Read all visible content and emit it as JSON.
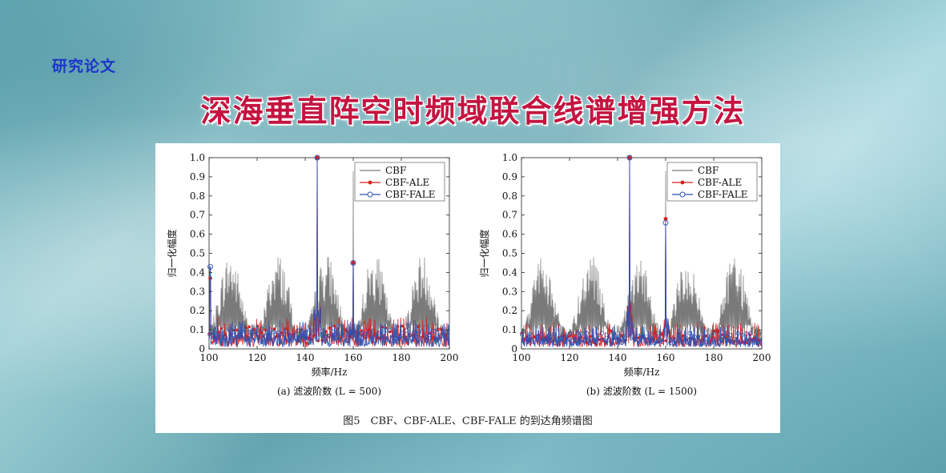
{
  "header": {
    "tag": "研究论文",
    "title": "深海垂直阵空时频域联合线谱增强方法"
  },
  "figure": {
    "caption": "图5　CBF、CBF-ALE、CBF-FALE 的到达角频谱图"
  },
  "colors": {
    "CBF": "#7a7a7a",
    "CBF-ALE": "#d42020",
    "CBF-FALE": "#2b4fb0",
    "title": "#c41440",
    "tag": "#1d35c9"
  },
  "chart_data": [
    {
      "type": "line",
      "subtitle": "(a) 滤波阶数 (L = 500)",
      "xlabel": "频率/Hz",
      "ylabel": "归一化幅度",
      "xlim": [
        100,
        200
      ],
      "ylim": [
        0,
        1
      ],
      "xticks": [
        "100",
        "120",
        "140",
        "160",
        "180",
        "200"
      ],
      "yticks": [
        "0",
        "0.1",
        "0.2",
        "0.3",
        "0.4",
        "0.5",
        "0.6",
        "0.7",
        "0.8",
        "0.9",
        "1.0"
      ],
      "legend": "top-right",
      "series": [
        {
          "name": "CBF",
          "peaks": [
            {
              "x": 145,
              "y": 1.0
            },
            {
              "x": 160,
              "y": 0.93
            }
          ],
          "envelope_max": 0.58,
          "envelope_min": 0.08
        },
        {
          "name": "CBF-ALE",
          "peaks": [
            {
              "x": 145,
              "y": 1.0
            },
            {
              "x": 160,
              "y": 0.45
            },
            {
              "x": 100.5,
              "y": 0.37
            }
          ],
          "noise_level": 0.1
        },
        {
          "name": "CBF-FALE",
          "peaks": [
            {
              "x": 145,
              "y": 1.0
            },
            {
              "x": 160,
              "y": 0.45
            },
            {
              "x": 100.5,
              "y": 0.43
            }
          ],
          "noise_level": 0.09
        }
      ]
    },
    {
      "type": "line",
      "subtitle": "(b) 滤波阶数 (L = 1500)",
      "xlabel": "频率/Hz",
      "ylabel": "归一化幅度",
      "xlim": [
        100,
        200
      ],
      "ylim": [
        0,
        1
      ],
      "xticks": [
        "100",
        "120",
        "140",
        "160",
        "180",
        "200"
      ],
      "yticks": [
        "0",
        "0.1",
        "0.2",
        "0.3",
        "0.4",
        "0.5",
        "0.6",
        "0.7",
        "0.8",
        "0.9",
        "1.0"
      ],
      "legend": "top-right",
      "series": [
        {
          "name": "CBF",
          "peaks": [
            {
              "x": 145,
              "y": 1.0
            },
            {
              "x": 160,
              "y": 0.93
            }
          ],
          "envelope_max": 0.58,
          "envelope_min": 0.08
        },
        {
          "name": "CBF-ALE",
          "peaks": [
            {
              "x": 145,
              "y": 1.0
            },
            {
              "x": 160,
              "y": 0.68
            }
          ],
          "noise_level": 0.08
        },
        {
          "name": "CBF-FALE",
          "peaks": [
            {
              "x": 145,
              "y": 1.0
            },
            {
              "x": 160,
              "y": 0.66
            }
          ],
          "noise_level": 0.07
        }
      ]
    }
  ]
}
